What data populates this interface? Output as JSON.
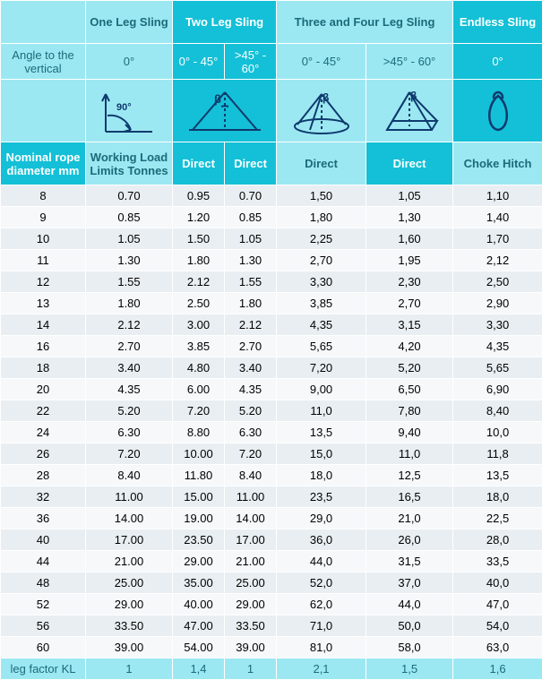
{
  "colors": {
    "teal_dark": "#13c0d7",
    "cyan_light": "#9ce8f2",
    "row_alt_a": "#e8eef2",
    "row_alt_b": "#f6f8fa",
    "text_head": "#1a6b7a",
    "navy": "#0e3a6e"
  },
  "head": {
    "one": "One Leg Sling",
    "two": "Two Leg Sling",
    "three": "Three and Four Leg Sling",
    "endless": "Endless Sling",
    "angle_row": "Angle to the vertical",
    "a0": "0°",
    "a45": "0° - 45°",
    "a60": ">45° - 60°"
  },
  "sub": {
    "diam": "Nominal rope diameter mm",
    "wll": "Working Load Limits Tonnes",
    "direct": "Direct",
    "choke": "Choke Hitch"
  },
  "rows": [
    {
      "d": "8",
      "v": [
        "0.70",
        "0.95",
        "0.70",
        "1,50",
        "1,05",
        "1,10"
      ]
    },
    {
      "d": "9",
      "v": [
        "0.85",
        "1.20",
        "0.85",
        "1,80",
        "1,30",
        "1,40"
      ]
    },
    {
      "d": "10",
      "v": [
        "1.05",
        "1.50",
        "1.05",
        "2,25",
        "1,60",
        "1,70"
      ]
    },
    {
      "d": "11",
      "v": [
        "1.30",
        "1.80",
        "1.30",
        "2,70",
        "1,95",
        "2,12"
      ]
    },
    {
      "d": "12",
      "v": [
        "1.55",
        "2.12",
        "1.55",
        "3,30",
        "2,30",
        "2,50"
      ]
    },
    {
      "d": "13",
      "v": [
        "1.80",
        "2.50",
        "1.80",
        "3,85",
        "2,70",
        "2,90"
      ]
    },
    {
      "d": "14",
      "v": [
        "2.12",
        "3.00",
        "2.12",
        "4,35",
        "3,15",
        "3,30"
      ]
    },
    {
      "d": "16",
      "v": [
        "2.70",
        "3.85",
        "2.70",
        "5,65",
        "4,20",
        "4,35"
      ]
    },
    {
      "d": "18",
      "v": [
        "3.40",
        "4.80",
        "3.40",
        "7,20",
        "5,20",
        "5,65"
      ]
    },
    {
      "d": "20",
      "v": [
        "4.35",
        "6.00",
        "4.35",
        "9,00",
        "6,50",
        "6,90"
      ]
    },
    {
      "d": "22",
      "v": [
        "5.20",
        "7.20",
        "5.20",
        "11,0",
        "7,80",
        "8,40"
      ]
    },
    {
      "d": "24",
      "v": [
        "6.30",
        "8.80",
        "6.30",
        "13,5",
        "9,40",
        "10,0"
      ]
    },
    {
      "d": "26",
      "v": [
        "7.20",
        "10.00",
        "7.20",
        "15,0",
        "11,0",
        "11,8"
      ]
    },
    {
      "d": "28",
      "v": [
        "8.40",
        "11.80",
        "8.40",
        "18,0",
        "12,5",
        "13,5"
      ]
    },
    {
      "d": "32",
      "v": [
        "11.00",
        "15.00",
        "11.00",
        "23,5",
        "16,5",
        "18,0"
      ]
    },
    {
      "d": "36",
      "v": [
        "14.00",
        "19.00",
        "14.00",
        "29,0",
        "21,0",
        "22,5"
      ]
    },
    {
      "d": "40",
      "v": [
        "17.00",
        "23.50",
        "17.00",
        "36,0",
        "26,0",
        "28,0"
      ]
    },
    {
      "d": "44",
      "v": [
        "21.00",
        "29.00",
        "21.00",
        "44,0",
        "31,5",
        "33,5"
      ]
    },
    {
      "d": "48",
      "v": [
        "25.00",
        "35.00",
        "25.00",
        "52,0",
        "37,0",
        "40,0"
      ]
    },
    {
      "d": "52",
      "v": [
        "29.00",
        "40.00",
        "29.00",
        "62,0",
        "44,0",
        "47,0"
      ]
    },
    {
      "d": "56",
      "v": [
        "33.50",
        "47.00",
        "33.50",
        "71,0",
        "50,0",
        "54,0"
      ]
    },
    {
      "d": "60",
      "v": [
        "39.00",
        "54.00",
        "39.00",
        "81,0",
        "58,0",
        "63,0"
      ]
    }
  ],
  "footer": {
    "label": "leg factor KL",
    "v": [
      "1",
      "1,4",
      "1",
      "2,1",
      "1,5",
      "1,6"
    ]
  },
  "icons": {
    "beta": "β",
    "ninety": "90°"
  }
}
